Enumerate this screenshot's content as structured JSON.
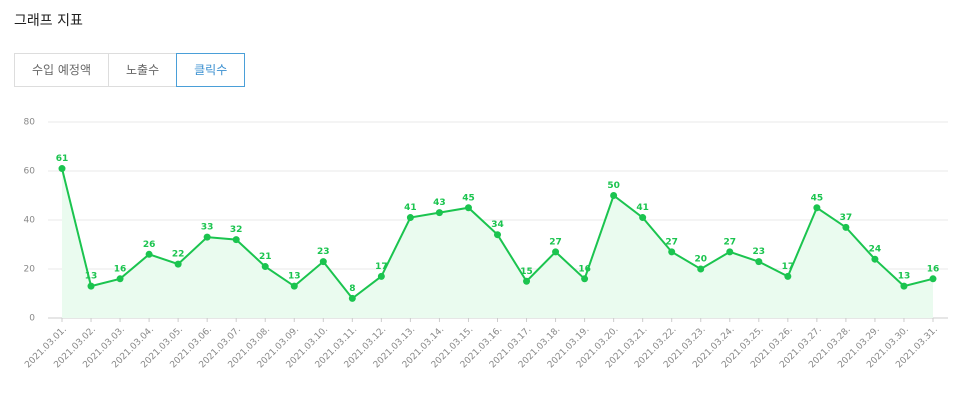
{
  "header": {
    "title": "그래프 지표"
  },
  "tabs": [
    "수입 예정액",
    "노출수",
    "클릭수"
  ],
  "chart_data": {
    "type": "line",
    "categories": [
      "2021.03.01.",
      "2021.03.02.",
      "2021.03.03.",
      "2021.03.04.",
      "2021.03.05.",
      "2021.03.06.",
      "2021.03.07.",
      "2021.03.08.",
      "2021.03.09.",
      "2021.03.10.",
      "2021.03.11.",
      "2021.03.12.",
      "2021.03.13.",
      "2021.03.14.",
      "2021.03.15.",
      "2021.03.16.",
      "2021.03.17.",
      "2021.03.18.",
      "2021.03.19.",
      "2021.03.20.",
      "2021.03.21.",
      "2021.03.22.",
      "2021.03.23.",
      "2021.03.24.",
      "2021.03.25.",
      "2021.03.26.",
      "2021.03.27.",
      "2021.03.28.",
      "2021.03.29.",
      "2021.03.30.",
      "2021.03.31."
    ],
    "values": [
      61,
      13,
      16,
      26,
      22,
      33,
      32,
      21,
      13,
      23,
      8,
      17,
      41,
      43,
      45,
      34,
      15,
      27,
      16,
      50,
      41,
      27,
      20,
      27,
      23,
      17,
      45,
      37,
      24,
      13,
      16
    ],
    "color": "#1bc44f",
    "fill": "#eafbef",
    "ylim": [
      0,
      80
    ],
    "yticks": [
      0,
      20,
      40,
      60,
      80
    ],
    "grid": true
  }
}
